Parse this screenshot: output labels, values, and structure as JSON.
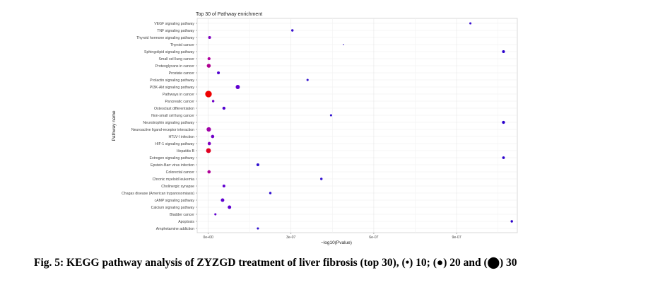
{
  "chart_data": {
    "type": "scatter",
    "title": "Top 30 of Pathway enrichment",
    "xlabel": "−log10(Pvalue)",
    "ylabel": "Pathway name",
    "xlim": [
      -4e-08,
      1.12e-06
    ],
    "xticks": [
      {
        "value": 0,
        "label": "0e+00"
      },
      {
        "value": 3e-07,
        "label": "3e-07"
      },
      {
        "value": 6e-07,
        "label": "6e-07"
      },
      {
        "value": 9e-07,
        "label": "9e-07"
      }
    ],
    "grid": true,
    "size_legend": [
      10,
      20,
      30
    ],
    "color_scale": {
      "low": "#2a00cc",
      "mid": "#a000b0",
      "high": "#ee0000"
    },
    "points": [
      {
        "pathway": "VEGF signaling pathway",
        "x": 9.5e-07,
        "size": 10,
        "color": "#3a10d0"
      },
      {
        "pathway": "TNF signaling pathway",
        "x": 3.05e-07,
        "size": 11,
        "color": "#3a10d0"
      },
      {
        "pathway": "Thyroid hormone signaling pathway",
        "x": 5e-09,
        "size": 13,
        "color": "#8000c0"
      },
      {
        "pathway": "Thyroid cancer",
        "x": 4.9e-07,
        "size": 4,
        "color": "#3010c0"
      },
      {
        "pathway": "Sphingolipid signaling pathway",
        "x": 1.07e-06,
        "size": 13,
        "color": "#2a00cc"
      },
      {
        "pathway": "Small cell lung cancer",
        "x": 3e-09,
        "size": 14,
        "color": "#b000a0"
      },
      {
        "pathway": "Proteoglycans in cancer",
        "x": 2e-09,
        "size": 18,
        "color": "#b00090"
      },
      {
        "pathway": "Prostate cancer",
        "x": 3.7e-08,
        "size": 13,
        "color": "#5000d0"
      },
      {
        "pathway": "Prolactin signaling pathway",
        "x": 3.6e-07,
        "size": 10,
        "color": "#3010d0"
      },
      {
        "pathway": "PI3K-Akt signaling pathway",
        "x": 1.07e-07,
        "size": 19,
        "color": "#6000d0"
      },
      {
        "pathway": "Pathways in cancer",
        "x": 1e-09,
        "size": 30,
        "color": "#ee0000"
      },
      {
        "pathway": "Pancreatic cancer",
        "x": 1.8e-08,
        "size": 11,
        "color": "#7000c8"
      },
      {
        "pathway": "Osteoclast differentiation",
        "x": 5.7e-08,
        "size": 14,
        "color": "#5000d0"
      },
      {
        "pathway": "Non-small cell lung cancer",
        "x": 4.45e-07,
        "size": 10,
        "color": "#3010d0"
      },
      {
        "pathway": "Neurotrophin signaling pathway",
        "x": 1.07e-06,
        "size": 14,
        "color": "#2a00cc"
      },
      {
        "pathway": "Neuroactive ligand-receptor interaction",
        "x": 2e-09,
        "size": 20,
        "color": "#a000a8"
      },
      {
        "pathway": "HTLV-I infection",
        "x": 1.6e-08,
        "size": 15,
        "color": "#7000c8"
      },
      {
        "pathway": "HIF-1 signaling pathway",
        "x": 4e-09,
        "size": 15,
        "color": "#8000c0"
      },
      {
        "pathway": "Hepatitis B",
        "x": 1e-09,
        "size": 22,
        "color": "#e00020"
      },
      {
        "pathway": "Estrogen signaling pathway",
        "x": 1.07e-06,
        "size": 12,
        "color": "#2a00cc"
      },
      {
        "pathway": "Epstein-Barr virus infection",
        "x": 1.8e-07,
        "size": 13,
        "color": "#3010d0"
      },
      {
        "pathway": "Colorectal cancer",
        "x": 3e-09,
        "size": 15,
        "color": "#b00098"
      },
      {
        "pathway": "Chronic myeloid leukemia",
        "x": 4.1e-07,
        "size": 11,
        "color": "#3010d0"
      },
      {
        "pathway": "Cholinergic synapse",
        "x": 5.7e-08,
        "size": 13,
        "color": "#6000d0"
      },
      {
        "pathway": "Chagas disease (American trypanosomiasis)",
        "x": 2.25e-07,
        "size": 11,
        "color": "#3010d0"
      },
      {
        "pathway": "cAMP signaling pathway",
        "x": 5.2e-08,
        "size": 16,
        "color": "#6000d0"
      },
      {
        "pathway": "Calcium signaling pathway",
        "x": 7.7e-08,
        "size": 16,
        "color": "#6000d0"
      },
      {
        "pathway": "Bladder cancer",
        "x": 2.6e-08,
        "size": 10,
        "color": "#6000d0"
      },
      {
        "pathway": "Apoptosis",
        "x": 1.1e-06,
        "size": 11,
        "color": "#2a00cc"
      },
      {
        "pathway": "Amphetamine addiction",
        "x": 1.8e-07,
        "size": 10,
        "color": "#3010d0"
      }
    ]
  },
  "caption": {
    "text": "Fig. 5: KEGG pathway analysis of ZYZGD treatment of liver fibrosis (top 30), (•) 10; (●) 20 and (⬤) 30"
  }
}
